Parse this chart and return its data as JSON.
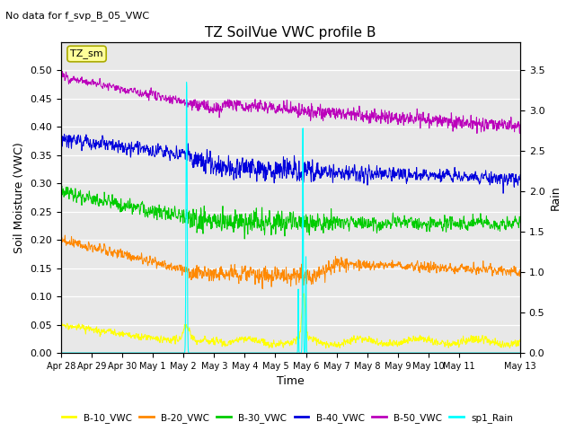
{
  "title": "TZ SoilVue VWC profile B",
  "subtitle": "No data for f_svp_B_05_VWC",
  "xlabel": "Time",
  "ylabel_left": "Soil Moisture (VWC)",
  "ylabel_right": "Rain",
  "ylim_left": [
    0.0,
    0.55
  ],
  "ylim_right": [
    0.0,
    3.85
  ],
  "yticks_left": [
    0.0,
    0.05,
    0.1,
    0.15,
    0.2,
    0.25,
    0.3,
    0.35,
    0.4,
    0.45,
    0.5
  ],
  "yticks_right": [
    0.0,
    0.5,
    1.0,
    1.5,
    2.0,
    2.5,
    3.0,
    3.5
  ],
  "n_points": 2000,
  "n_days": 15,
  "colors": {
    "B10": "#ffff00",
    "B20": "#ff8800",
    "B30": "#00cc00",
    "B40": "#0000dd",
    "B50": "#bb00bb",
    "rain": "#00ffff",
    "bg": "#e8e8e8",
    "annotation_bg": "#ffff99",
    "annotation_border": "#aaaa00"
  },
  "legend_labels": [
    "B-10_VWC",
    "B-20_VWC",
    "B-30_VWC",
    "B-40_VWC",
    "B-50_VWC",
    "sp1_Rain"
  ],
  "annotation_text": "TZ_sm",
  "tick_days": [
    0,
    1,
    2,
    3,
    4,
    5,
    6,
    7,
    8,
    9,
    10,
    11,
    12,
    13,
    15
  ],
  "tick_labels": [
    "Apr 28",
    "Apr 29",
    "Apr 30",
    "May 1",
    "May 2",
    "May 3",
    "May 4",
    "May 5",
    "May 6",
    "May 7",
    "May 8",
    "May 9",
    "May 10",
    "May 11",
    "May 13"
  ]
}
